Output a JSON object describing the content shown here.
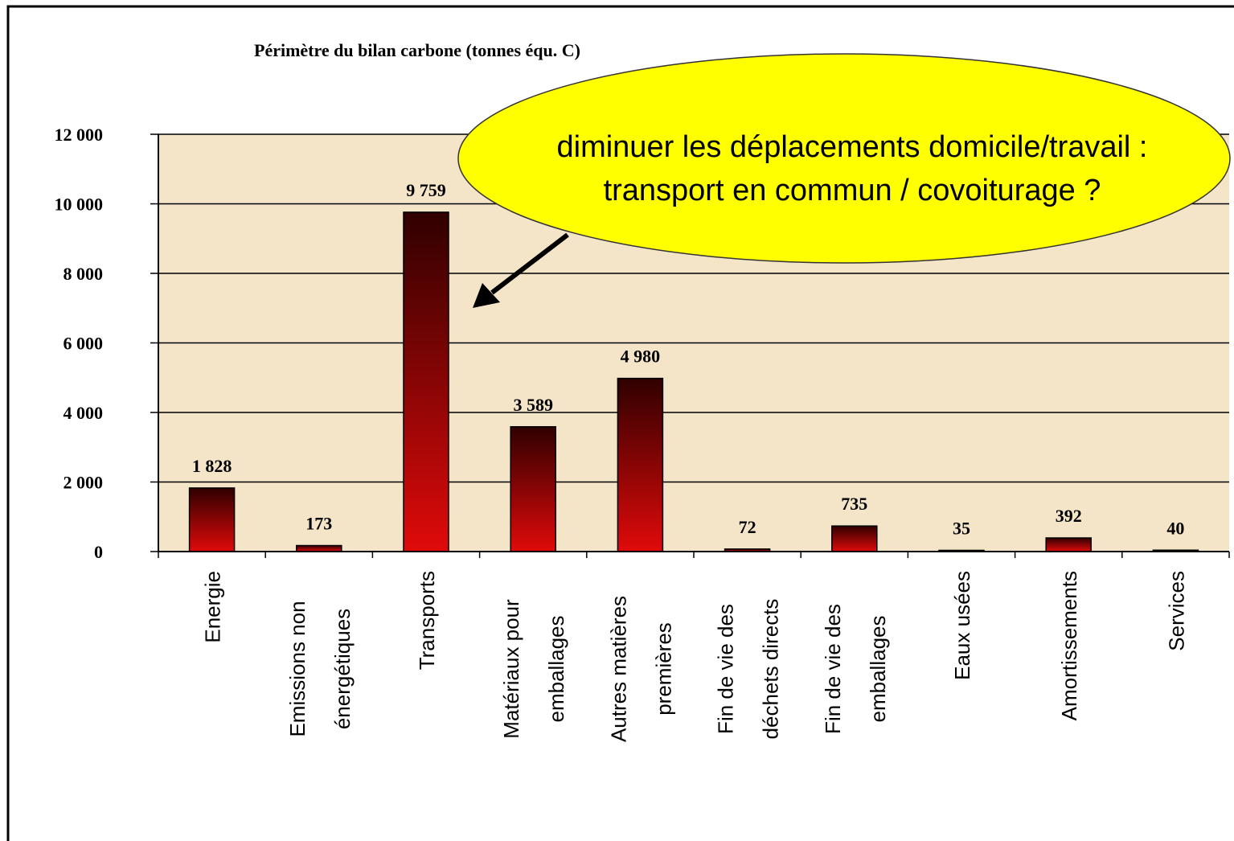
{
  "chart_data": {
    "type": "bar",
    "title": "Périmètre du bilan carbone (tonnes équ. C)",
    "categories": [
      [
        "Energie"
      ],
      [
        "Emissions non",
        "énergétiques"
      ],
      [
        "Transports"
      ],
      [
        "Matériaux pour",
        "emballages"
      ],
      [
        "Autres matières",
        "premières"
      ],
      [
        "Fin de vie des",
        "déchets directs"
      ],
      [
        "Fin de vie des",
        "emballages"
      ],
      [
        "Eaux usées"
      ],
      [
        "Amortissements"
      ],
      [
        "Services"
      ]
    ],
    "values": [
      1828,
      173,
      9759,
      3589,
      4980,
      72,
      735,
      35,
      392,
      40
    ],
    "value_labels": [
      "1 828",
      "173",
      "9 759",
      "3 589",
      "4 980",
      "72",
      "735",
      "35",
      "392",
      "40"
    ],
    "color": "#e00a0a",
    "ylim": [
      0,
      12000
    ],
    "yticks": [
      {
        "value": 0,
        "label": "0"
      },
      {
        "value": 2000,
        "label": "2 000"
      },
      {
        "value": 4000,
        "label": "4 000"
      },
      {
        "value": 6000,
        "label": "6 000"
      },
      {
        "value": 8000,
        "label": "8 000"
      },
      {
        "value": 10000,
        "label": "10 000"
      },
      {
        "value": 12000,
        "label": "12 000"
      }
    ],
    "grid": true,
    "annotation": [
      "diminuer les déplacements domicile/travail :",
      "transport en commun / covoiturage ?"
    ]
  }
}
